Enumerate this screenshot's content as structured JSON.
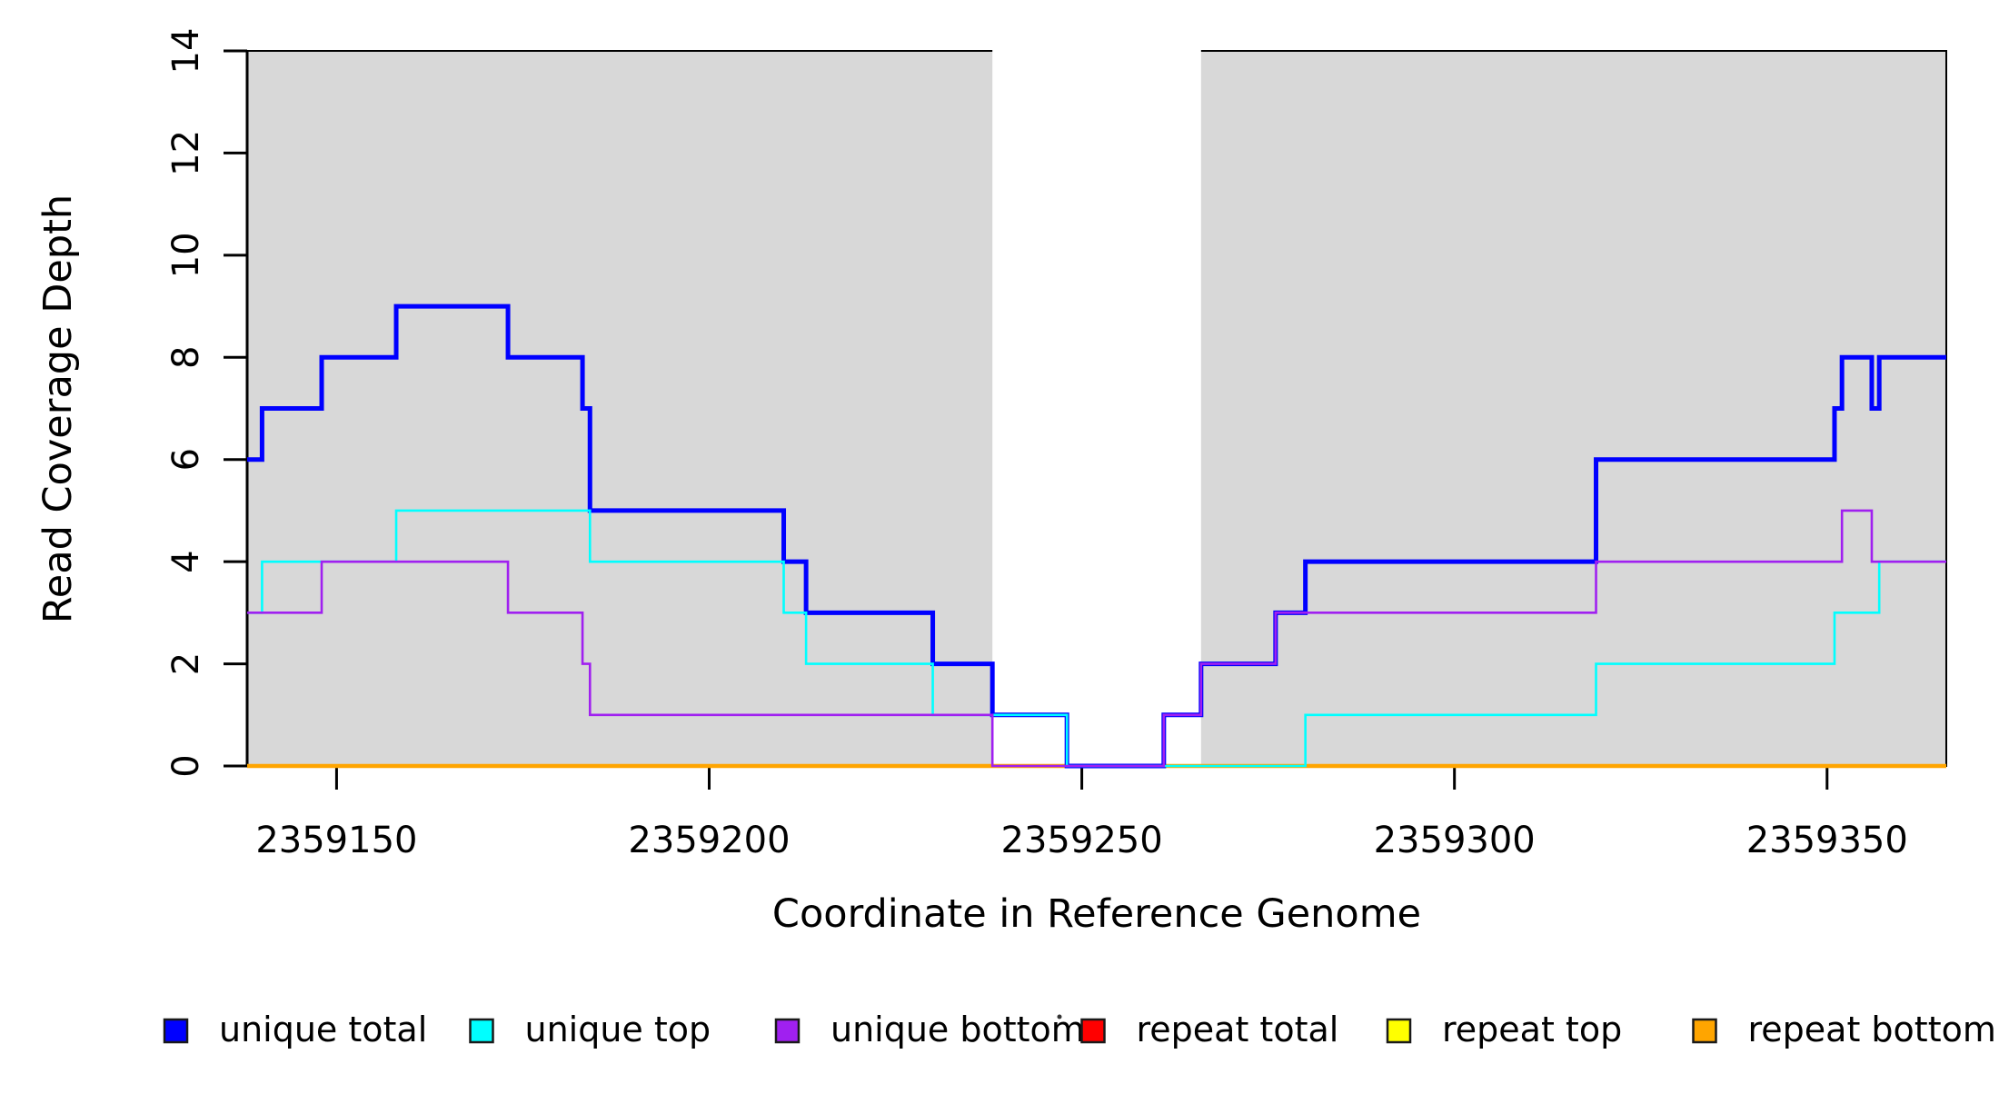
{
  "chart_data": {
    "type": "line",
    "subtype": "step-coverage-plot",
    "title": "",
    "xlabel": "Coordinate in Reference Genome",
    "ylabel": "Read Coverage Depth",
    "xlim": [
      2359138,
      2359366
    ],
    "ylim": [
      0,
      14
    ],
    "x_ticks": [
      2359150,
      2359200,
      2359250,
      2359300,
      2359350
    ],
    "y_ticks": [
      0,
      2,
      4,
      6,
      8,
      10,
      12,
      14
    ],
    "grid": false,
    "legend_position": "bottom",
    "background_color": "#FFFFFF",
    "shaded_regions": {
      "color": "#D8D8D8",
      "border_color": "#000000",
      "intervals": [
        [
          2359138,
          2359238
        ],
        [
          2359266,
          2359366
        ]
      ]
    },
    "x_end": 2359366,
    "series": [
      {
        "name": "unique total",
        "color": "#0000FF",
        "line_width": 5,
        "steps": [
          [
            2359138,
            6
          ],
          [
            2359140,
            7
          ],
          [
            2359148,
            8
          ],
          [
            2359158,
            9
          ],
          [
            2359173,
            8
          ],
          [
            2359183,
            7
          ],
          [
            2359184,
            5
          ],
          [
            2359210,
            4
          ],
          [
            2359213,
            3
          ],
          [
            2359230,
            2
          ],
          [
            2359238,
            1
          ],
          [
            2359248,
            0
          ],
          [
            2359261,
            1
          ],
          [
            2359266,
            2
          ],
          [
            2359276,
            3
          ],
          [
            2359280,
            4
          ],
          [
            2359319,
            6
          ],
          [
            2359351,
            7
          ],
          [
            2359352,
            8
          ],
          [
            2359356,
            7
          ],
          [
            2359357,
            8
          ]
        ]
      },
      {
        "name": "unique top",
        "color": "#00FFFF",
        "line_width": 2.6,
        "steps": [
          [
            2359138,
            3
          ],
          [
            2359140,
            4
          ],
          [
            2359158,
            5
          ],
          [
            2359184,
            4
          ],
          [
            2359210,
            3
          ],
          [
            2359213,
            2
          ],
          [
            2359230,
            1
          ],
          [
            2359248,
            0
          ],
          [
            2359280,
            1
          ],
          [
            2359319,
            2
          ],
          [
            2359351,
            3
          ],
          [
            2359357,
            4
          ]
        ]
      },
      {
        "name": "unique bottom",
        "color": "#A020F0",
        "line_width": 2.6,
        "steps": [
          [
            2359138,
            3
          ],
          [
            2359148,
            4
          ],
          [
            2359173,
            3
          ],
          [
            2359183,
            2
          ],
          [
            2359184,
            1
          ],
          [
            2359238,
            0
          ],
          [
            2359261,
            1
          ],
          [
            2359266,
            2
          ],
          [
            2359276,
            3
          ],
          [
            2359319,
            4
          ],
          [
            2359352,
            5
          ],
          [
            2359356,
            4
          ]
        ]
      },
      {
        "name": "repeat total",
        "color": "#FF0000",
        "line_width": 2.6,
        "steps": [
          [
            2359138,
            0
          ]
        ]
      },
      {
        "name": "repeat top",
        "color": "#FFFF00",
        "line_width": 2.6,
        "steps": [
          [
            2359138,
            0
          ]
        ]
      },
      {
        "name": "repeat bottom",
        "color": "#FFA500",
        "line_width": 4.5,
        "steps": [
          [
            2359138,
            0
          ]
        ]
      }
    ],
    "draw_order": [
      "repeat total",
      "repeat top",
      "repeat bottom",
      "unique total",
      "unique top",
      "unique bottom"
    ]
  }
}
